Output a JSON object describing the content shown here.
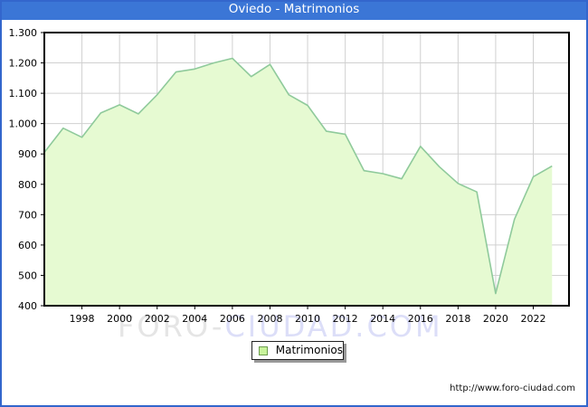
{
  "window": {
    "title": "Oviedo - Matrimonios"
  },
  "legend": {
    "label": "Matrimonios"
  },
  "footer": {
    "url": "http://www.foro-ciudad.com"
  },
  "watermark": {
    "part1": "FORO-",
    "part2": "CIUDAD.COM"
  },
  "colors": {
    "titlebar_bg": "#3B76D6",
    "frame_border": "#3366CC",
    "area_fill": "#E6FAD2",
    "area_line": "#8FCA9B",
    "grid": "#D0D0D0",
    "plot_border": "#000000",
    "axis_text": "#000000",
    "watermark_gray": "#E5E5E5",
    "watermark_blue": "#DCDEF8",
    "legend_swatch_fill": "#C8F39B",
    "legend_swatch_border": "#6D9E4F"
  },
  "chart_data": {
    "type": "area",
    "title": "Oviedo - Matrimonios",
    "series_name": "Matrimonios",
    "x": [
      1996,
      1997,
      1998,
      1999,
      2000,
      2001,
      2002,
      2003,
      2004,
      2005,
      2006,
      2007,
      2008,
      2009,
      2010,
      2011,
      2012,
      2013,
      2014,
      2015,
      2016,
      2017,
      2018,
      2019,
      2020,
      2021,
      2022,
      2023
    ],
    "values": [
      905,
      985,
      955,
      1035,
      1062,
      1032,
      1095,
      1170,
      1180,
      1200,
      1215,
      1155,
      1195,
      1095,
      1060,
      975,
      965,
      845,
      835,
      818,
      925,
      858,
      803,
      775,
      440,
      685,
      825,
      860
    ],
    "xlim": [
      1996,
      2023.9
    ],
    "ylim": [
      400,
      1300
    ],
    "y_ticks": [
      {
        "value": 400,
        "label": "400"
      },
      {
        "value": 500,
        "label": "500"
      },
      {
        "value": 600,
        "label": "600"
      },
      {
        "value": 700,
        "label": "700"
      },
      {
        "value": 800,
        "label": "800"
      },
      {
        "value": 900,
        "label": "900"
      },
      {
        "value": 1000,
        "label": "1.000"
      },
      {
        "value": 1100,
        "label": "1.100"
      },
      {
        "value": 1200,
        "label": "1.200"
      },
      {
        "value": 1300,
        "label": "1.300"
      }
    ],
    "x_ticks": [
      {
        "value": 1998,
        "label": "1998"
      },
      {
        "value": 2000,
        "label": "2000"
      },
      {
        "value": 2002,
        "label": "2002"
      },
      {
        "value": 2004,
        "label": "2004"
      },
      {
        "value": 2006,
        "label": "2006"
      },
      {
        "value": 2008,
        "label": "2008"
      },
      {
        "value": 2010,
        "label": "2010"
      },
      {
        "value": 2012,
        "label": "2012"
      },
      {
        "value": 2014,
        "label": "2014"
      },
      {
        "value": 2016,
        "label": "2016"
      },
      {
        "value": 2018,
        "label": "2018"
      },
      {
        "value": 2020,
        "label": "2020"
      },
      {
        "value": 2022,
        "label": "2022"
      }
    ],
    "grid": true,
    "legend_position": "bottom-center"
  }
}
